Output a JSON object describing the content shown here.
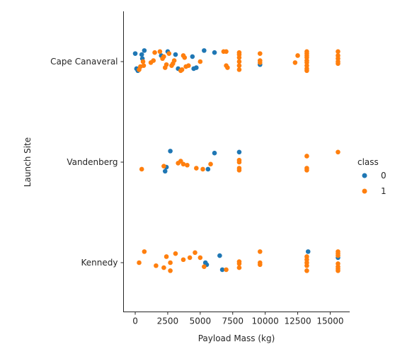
{
  "chart_data": {
    "type": "scatter",
    "title": "",
    "xlabel": "Payload Mass (kg)",
    "ylabel": "Launch Site",
    "categories": [
      "Cape Canaveral",
      "Vandenberg",
      "Kennedy"
    ],
    "xlim": [
      -900,
      16500
    ],
    "xticks": [
      0,
      2500,
      5000,
      7500,
      10000,
      12500,
      15000
    ],
    "legend": {
      "title": "class",
      "placement": "right",
      "entries": [
        "0",
        "1"
      ]
    },
    "colors": {
      "0": "#1f77b4",
      "1": "#ff7f0e"
    },
    "series": [
      {
        "name": "0",
        "points": [
          {
            "x": 0,
            "site": "Cape Canaveral",
            "j": -0.08
          },
          {
            "x": 100,
            "site": "Cape Canaveral",
            "j": 0.07
          },
          {
            "x": 200,
            "site": "Cape Canaveral",
            "j": 0.09
          },
          {
            "x": 500,
            "site": "Cape Canaveral",
            "j": -0.07
          },
          {
            "x": 550,
            "site": "Cape Canaveral",
            "j": -0.03
          },
          {
            "x": 700,
            "site": "Cape Canaveral",
            "j": -0.11
          },
          {
            "x": 2000,
            "site": "Cape Canaveral",
            "j": -0.06
          },
          {
            "x": 2500,
            "site": "Cape Canaveral",
            "j": -0.1
          },
          {
            "x": 3100,
            "site": "Cape Canaveral",
            "j": -0.07
          },
          {
            "x": 3300,
            "site": "Cape Canaveral",
            "j": 0.07
          },
          {
            "x": 4400,
            "site": "Cape Canaveral",
            "j": -0.05
          },
          {
            "x": 4500,
            "site": "Cape Canaveral",
            "j": 0.07
          },
          {
            "x": 4700,
            "site": "Cape Canaveral",
            "j": 0.06
          },
          {
            "x": 5300,
            "site": "Cape Canaveral",
            "j": -0.11
          },
          {
            "x": 6100,
            "site": "Cape Canaveral",
            "j": -0.09
          },
          {
            "x": 9600,
            "site": "Cape Canaveral",
            "j": 0.03
          },
          {
            "x": 2700,
            "site": "Vandenberg",
            "j": -0.11
          },
          {
            "x": 2400,
            "site": "Vandenberg",
            "j": 0.05
          },
          {
            "x": 2300,
            "site": "Vandenberg",
            "j": 0.09
          },
          {
            "x": 5600,
            "site": "Vandenberg",
            "j": 0.07
          },
          {
            "x": 6100,
            "site": "Vandenberg",
            "j": -0.09
          },
          {
            "x": 8000,
            "site": "Vandenberg",
            "j": -0.1
          },
          {
            "x": 6500,
            "site": "Kennedy",
            "j": -0.07
          },
          {
            "x": 5400,
            "site": "Kennedy",
            "j": 0.0
          },
          {
            "x": 5500,
            "site": "Kennedy",
            "j": 0.02
          },
          {
            "x": 6700,
            "site": "Kennedy",
            "j": 0.07
          },
          {
            "x": 13300,
            "site": "Kennedy",
            "j": -0.11
          },
          {
            "x": 15600,
            "site": "Kennedy",
            "j": -0.05
          }
        ]
      },
      {
        "name": "1",
        "points": [
          {
            "x": 300,
            "site": "Cape Canaveral",
            "j": 0.08
          },
          {
            "x": 400,
            "site": "Cape Canaveral",
            "j": 0.05
          },
          {
            "x": 600,
            "site": "Cape Canaveral",
            "j": 0.0
          },
          {
            "x": 650,
            "site": "Cape Canaveral",
            "j": 0.04
          },
          {
            "x": 1200,
            "site": "Cape Canaveral",
            "j": 0.01
          },
          {
            "x": 1400,
            "site": "Cape Canaveral",
            "j": -0.01
          },
          {
            "x": 1500,
            "site": "Cape Canaveral",
            "j": -0.09
          },
          {
            "x": 1900,
            "site": "Cape Canaveral",
            "j": -0.1
          },
          {
            "x": 2100,
            "site": "Cape Canaveral",
            "j": -0.03
          },
          {
            "x": 2200,
            "site": "Cape Canaveral",
            "j": -0.05
          },
          {
            "x": 2300,
            "site": "Cape Canaveral",
            "j": 0.06
          },
          {
            "x": 2400,
            "site": "Cape Canaveral",
            "j": 0.03
          },
          {
            "x": 2600,
            "site": "Cape Canaveral",
            "j": -0.08
          },
          {
            "x": 2800,
            "site": "Cape Canaveral",
            "j": 0.04
          },
          {
            "x": 2900,
            "site": "Cape Canaveral",
            "j": 0.02
          },
          {
            "x": 3000,
            "site": "Cape Canaveral",
            "j": -0.01
          },
          {
            "x": 3500,
            "site": "Cape Canaveral",
            "j": 0.09
          },
          {
            "x": 3600,
            "site": "Cape Canaveral",
            "j": 0.08
          },
          {
            "x": 3700,
            "site": "Cape Canaveral",
            "j": -0.06
          },
          {
            "x": 3800,
            "site": "Cape Canaveral",
            "j": -0.04
          },
          {
            "x": 3900,
            "site": "Cape Canaveral",
            "j": 0.05
          },
          {
            "x": 4100,
            "site": "Cape Canaveral",
            "j": 0.04
          },
          {
            "x": 5000,
            "site": "Cape Canaveral",
            "j": 0.0
          },
          {
            "x": 6800,
            "site": "Cape Canaveral",
            "j": -0.1
          },
          {
            "x": 7000,
            "site": "Cape Canaveral",
            "j": -0.1
          },
          {
            "x": 7000,
            "site": "Cape Canaveral",
            "j": 0.04
          },
          {
            "x": 7100,
            "site": "Cape Canaveral",
            "j": 0.06
          },
          {
            "x": 8000,
            "site": "Cape Canaveral",
            "j": -0.09
          },
          {
            "x": 8000,
            "site": "Cape Canaveral",
            "j": -0.07
          },
          {
            "x": 8000,
            "site": "Cape Canaveral",
            "j": -0.04
          },
          {
            "x": 8000,
            "site": "Cape Canaveral",
            "j": 0.0
          },
          {
            "x": 8000,
            "site": "Cape Canaveral",
            "j": 0.04
          },
          {
            "x": 8000,
            "site": "Cape Canaveral",
            "j": 0.08
          },
          {
            "x": 9600,
            "site": "Cape Canaveral",
            "j": -0.08
          },
          {
            "x": 9600,
            "site": "Cape Canaveral",
            "j": -0.01
          },
          {
            "x": 9600,
            "site": "Cape Canaveral",
            "j": 0.01
          },
          {
            "x": 12300,
            "site": "Cape Canaveral",
            "j": 0.01
          },
          {
            "x": 12500,
            "site": "Cape Canaveral",
            "j": -0.06
          },
          {
            "x": 13200,
            "site": "Cape Canaveral",
            "j": -0.1
          },
          {
            "x": 13200,
            "site": "Cape Canaveral",
            "j": -0.08
          },
          {
            "x": 13200,
            "site": "Cape Canaveral",
            "j": -0.06
          },
          {
            "x": 13200,
            "site": "Cape Canaveral",
            "j": -0.04
          },
          {
            "x": 13200,
            "site": "Cape Canaveral",
            "j": -0.01
          },
          {
            "x": 13200,
            "site": "Cape Canaveral",
            "j": 0.01
          },
          {
            "x": 13200,
            "site": "Cape Canaveral",
            "j": 0.04
          },
          {
            "x": 13200,
            "site": "Cape Canaveral",
            "j": 0.07
          },
          {
            "x": 13200,
            "site": "Cape Canaveral",
            "j": 0.09
          },
          {
            "x": 15600,
            "site": "Cape Canaveral",
            "j": -0.1
          },
          {
            "x": 15600,
            "site": "Cape Canaveral",
            "j": -0.06
          },
          {
            "x": 15600,
            "site": "Cape Canaveral",
            "j": -0.03
          },
          {
            "x": 15600,
            "site": "Cape Canaveral",
            "j": 0.0
          },
          {
            "x": 15600,
            "site": "Cape Canaveral",
            "j": 0.02
          },
          {
            "x": 500,
            "site": "Vandenberg",
            "j": 0.07
          },
          {
            "x": 2200,
            "site": "Vandenberg",
            "j": 0.04
          },
          {
            "x": 3300,
            "site": "Vandenberg",
            "j": 0.01
          },
          {
            "x": 3500,
            "site": "Vandenberg",
            "j": -0.01
          },
          {
            "x": 3700,
            "site": "Vandenberg",
            "j": 0.02
          },
          {
            "x": 4000,
            "site": "Vandenberg",
            "j": 0.03
          },
          {
            "x": 4700,
            "site": "Vandenberg",
            "j": 0.06
          },
          {
            "x": 5200,
            "site": "Vandenberg",
            "j": 0.07
          },
          {
            "x": 5800,
            "site": "Vandenberg",
            "j": 0.02
          },
          {
            "x": 8000,
            "site": "Vandenberg",
            "j": -0.02
          },
          {
            "x": 8000,
            "site": "Vandenberg",
            "j": 0.0
          },
          {
            "x": 8000,
            "site": "Vandenberg",
            "j": 0.06
          },
          {
            "x": 8000,
            "site": "Vandenberg",
            "j": 0.08
          },
          {
            "x": 13200,
            "site": "Vandenberg",
            "j": -0.06
          },
          {
            "x": 13200,
            "site": "Vandenberg",
            "j": 0.06
          },
          {
            "x": 13200,
            "site": "Vandenberg",
            "j": 0.08
          },
          {
            "x": 15600,
            "site": "Vandenberg",
            "j": -0.1
          },
          {
            "x": 300,
            "site": "Kennedy",
            "j": 0.0
          },
          {
            "x": 700,
            "site": "Kennedy",
            "j": -0.11
          },
          {
            "x": 1600,
            "site": "Kennedy",
            "j": 0.03
          },
          {
            "x": 2200,
            "site": "Kennedy",
            "j": 0.05
          },
          {
            "x": 2400,
            "site": "Kennedy",
            "j": -0.06
          },
          {
            "x": 2700,
            "site": "Kennedy",
            "j": 0.0
          },
          {
            "x": 2700,
            "site": "Kennedy",
            "j": 0.08
          },
          {
            "x": 3100,
            "site": "Kennedy",
            "j": -0.09
          },
          {
            "x": 3700,
            "site": "Kennedy",
            "j": -0.03
          },
          {
            "x": 4200,
            "site": "Kennedy",
            "j": -0.05
          },
          {
            "x": 4600,
            "site": "Kennedy",
            "j": -0.1
          },
          {
            "x": 5000,
            "site": "Kennedy",
            "j": -0.05
          },
          {
            "x": 5300,
            "site": "Kennedy",
            "j": 0.04
          },
          {
            "x": 7000,
            "site": "Kennedy",
            "j": 0.07
          },
          {
            "x": 8000,
            "site": "Kennedy",
            "j": -0.01
          },
          {
            "x": 8000,
            "site": "Kennedy",
            "j": 0.01
          },
          {
            "x": 8000,
            "site": "Kennedy",
            "j": 0.05
          },
          {
            "x": 9600,
            "site": "Kennedy",
            "j": -0.11
          },
          {
            "x": 9600,
            "site": "Kennedy",
            "j": 0.0
          },
          {
            "x": 9600,
            "site": "Kennedy",
            "j": 0.02
          },
          {
            "x": 13200,
            "site": "Kennedy",
            "j": -0.06
          },
          {
            "x": 13200,
            "site": "Kennedy",
            "j": -0.03
          },
          {
            "x": 13200,
            "site": "Kennedy",
            "j": 0.0
          },
          {
            "x": 13200,
            "site": "Kennedy",
            "j": 0.03
          },
          {
            "x": 13200,
            "site": "Kennedy",
            "j": 0.08
          },
          {
            "x": 15600,
            "site": "Kennedy",
            "j": -0.11
          },
          {
            "x": 15600,
            "site": "Kennedy",
            "j": -0.09
          },
          {
            "x": 15600,
            "site": "Kennedy",
            "j": -0.07
          },
          {
            "x": 15600,
            "site": "Kennedy",
            "j": 0.01
          },
          {
            "x": 15600,
            "site": "Kennedy",
            "j": 0.04
          },
          {
            "x": 15600,
            "site": "Kennedy",
            "j": 0.06
          },
          {
            "x": 15600,
            "site": "Kennedy",
            "j": 0.08
          }
        ]
      }
    ]
  }
}
